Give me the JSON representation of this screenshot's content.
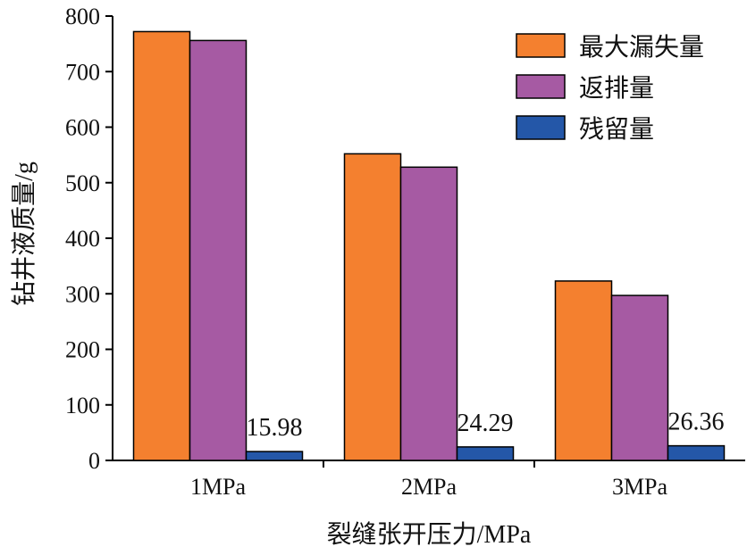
{
  "chart_data": {
    "type": "bar",
    "categories": [
      "1MPa",
      "2MPa",
      "3MPa"
    ],
    "series": [
      {
        "name": "最大漏失量",
        "values": [
          772,
          552,
          323
        ],
        "color": "#F4802F"
      },
      {
        "name": "返排量",
        "values": [
          756,
          528,
          297
        ],
        "color": "#A65AA3"
      },
      {
        "name": "残留量",
        "values": [
          15.98,
          24.29,
          26.36
        ],
        "color": "#2457A8"
      }
    ],
    "data_labels": [
      "15.98",
      "24.29",
      "26.36"
    ],
    "xlabel": "裂缝张开压力/MPa",
    "ylabel": "钻井液质量/g",
    "ylim": [
      0,
      800
    ],
    "yticks": [
      0,
      100,
      200,
      300,
      400,
      500,
      600,
      700,
      800
    ],
    "grid": false,
    "legend_position": "top-right"
  }
}
